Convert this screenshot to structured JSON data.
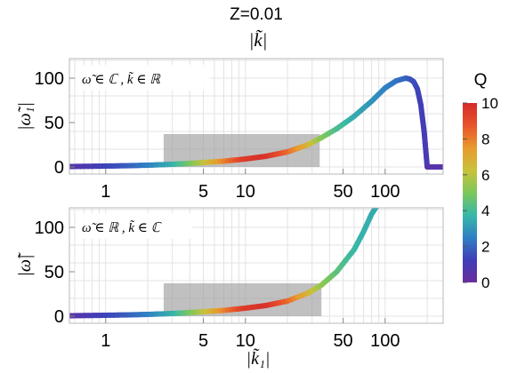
{
  "header": {
    "title": "Z=0.01",
    "top_axis_label": "|k̃|"
  },
  "colorbar": {
    "label": "Q",
    "ticks": [
      "0",
      "2",
      "4",
      "6",
      "8",
      "10"
    ],
    "range": [
      0,
      10
    ],
    "colors": [
      "#6a2c9e",
      "#3f3fb8",
      "#2f7fc4",
      "#37b8a8",
      "#7cc85a",
      "#c9c13a",
      "#e89a2e",
      "#e8532a",
      "#d42a2a"
    ]
  },
  "chart_data": [
    {
      "type": "line",
      "xscale": "log",
      "xlim": [
        0.55,
        260
      ],
      "ylim": [
        -8,
        122
      ],
      "xticks": [
        1,
        5,
        10,
        50,
        100
      ],
      "xtick_labels": [
        "1",
        "5",
        "10",
        "50",
        "100"
      ],
      "yticks": [
        0,
        50,
        100
      ],
      "ytick_labels": [
        "0",
        "50",
        "100"
      ],
      "ylabel": "|ω̃₁|",
      "annotation": "ω̃ ∈ ℂ , k̃ ∈ ℝ",
      "shaded_region": {
        "x": [
          2.6,
          34
        ],
        "y": [
          0,
          37
        ]
      },
      "grid": true,
      "x": [
        0.55,
        0.8,
        1,
        1.5,
        2,
        3,
        4,
        5,
        7,
        10,
        14,
        20,
        28,
        35,
        45,
        60,
        80,
        100,
        120,
        140,
        150,
        160,
        170,
        180,
        190,
        195,
        200,
        210,
        260
      ],
      "y": [
        0.5,
        0.8,
        1,
        1.5,
        2,
        3,
        4,
        5,
        6.5,
        9,
        12,
        17,
        25,
        33,
        43,
        57,
        74,
        89,
        97,
        100,
        99,
        96,
        88,
        70,
        40,
        20,
        0,
        0,
        0
      ],
      "q": [
        0.5,
        1.0,
        1.3,
        1.9,
        2.5,
        3.5,
        4.8,
        6.0,
        7.8,
        9.5,
        9.8,
        8.5,
        6.8,
        5.2,
        4.2,
        3.5,
        3.0,
        2.6,
        2.3,
        2.0,
        1.8,
        1.6,
        1.4,
        1.2,
        1.1,
        1.0,
        1.0,
        0.5,
        0.5
      ]
    },
    {
      "type": "line",
      "xscale": "log",
      "xlim": [
        0.55,
        260
      ],
      "ylim": [
        -8,
        122
      ],
      "xticks": [
        1,
        5,
        10,
        50,
        100
      ],
      "xtick_labels": [
        "1",
        "5",
        "10",
        "50",
        "100"
      ],
      "yticks": [
        0,
        50,
        100
      ],
      "ytick_labels": [
        "0",
        "50",
        "100"
      ],
      "ylabel": "|ω̃|",
      "xlabel": "|k̃₁|",
      "annotation": "ω̃ ∈ ℝ , k̃ ∈ ℂ",
      "shaded_region": {
        "x": [
          2.6,
          35
        ],
        "y": [
          0,
          37
        ]
      },
      "grid": true,
      "x": [
        0.55,
        0.8,
        1,
        1.5,
        2,
        3,
        4,
        5,
        7,
        10,
        14,
        20,
        28,
        35,
        45,
        60,
        70,
        80,
        88
      ],
      "y": [
        0.5,
        0.8,
        1,
        1.5,
        2,
        3,
        4,
        5,
        6.5,
        9,
        12,
        17,
        26,
        35,
        50,
        75,
        95,
        115,
        125
      ],
      "q": [
        0.5,
        1.0,
        1.3,
        1.9,
        2.5,
        3.5,
        4.8,
        6.0,
        7.8,
        9.5,
        9.8,
        8.5,
        6.8,
        5.4,
        4.5,
        3.8,
        3.6,
        3.5,
        3.4
      ]
    }
  ]
}
